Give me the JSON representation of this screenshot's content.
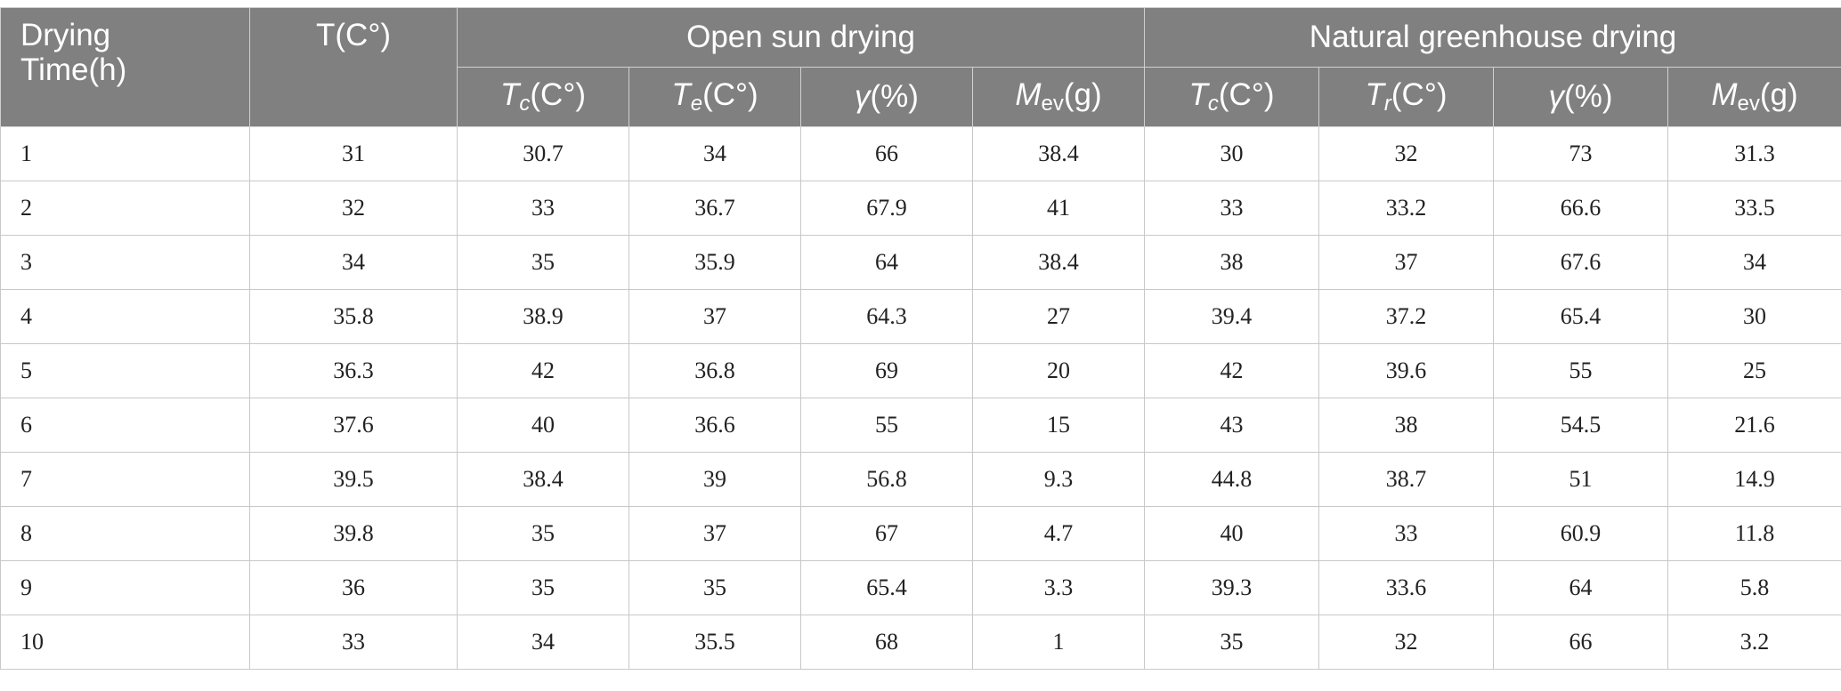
{
  "header": {
    "time_line1": "Drying",
    "time_line2": "Time(h)",
    "t_label": "T(C°)",
    "open_group": "Open sun drying",
    "natural_group": "Natural greenhouse drying",
    "open_cols": [
      {
        "sym": "T",
        "sub": "c",
        "unit": "(C°)"
      },
      {
        "sym": "T",
        "sub": "e",
        "unit": "(C°)"
      },
      {
        "sym": "γ",
        "sub": "",
        "unit": "(%)"
      },
      {
        "sym": "M",
        "sub": "ev",
        "unit": "(g)"
      }
    ],
    "natural_cols": [
      {
        "sym": "T",
        "sub": "c",
        "unit": "(C°)"
      },
      {
        "sym": "T",
        "sub": "r",
        "unit": "(C°)"
      },
      {
        "sym": "γ",
        "sub": "",
        "unit": "(%)"
      },
      {
        "sym": "M",
        "sub": "ev",
        "unit": "(g)"
      }
    ]
  },
  "rows": [
    [
      "1",
      "31",
      "30.7",
      "34",
      "66",
      "38.4",
      "30",
      "32",
      "73",
      "31.3"
    ],
    [
      "2",
      "32",
      "33",
      "36.7",
      "67.9",
      "41",
      "33",
      "33.2",
      "66.6",
      "33.5"
    ],
    [
      "3",
      "34",
      "35",
      "35.9",
      "64",
      "38.4",
      "38",
      "37",
      "67.6",
      "34"
    ],
    [
      "4",
      "35.8",
      "38.9",
      "37",
      "64.3",
      "27",
      "39.4",
      "37.2",
      "65.4",
      "30"
    ],
    [
      "5",
      "36.3",
      "42",
      "36.8",
      "69",
      "20",
      "42",
      "39.6",
      "55",
      "25"
    ],
    [
      "6",
      "37.6",
      "40",
      "36.6",
      "55",
      "15",
      "43",
      "38",
      "54.5",
      "21.6"
    ],
    [
      "7",
      "39.5",
      "38.4",
      "39",
      "56.8",
      "9.3",
      "44.8",
      "38.7",
      "51",
      "14.9"
    ],
    [
      "8",
      "39.8",
      "35",
      "37",
      "67",
      "4.7",
      "40",
      "33",
      "60.9",
      "11.8"
    ],
    [
      "9",
      "36",
      "35",
      "35",
      "65.4",
      "3.3",
      "39.3",
      "33.6",
      "64",
      "5.8"
    ],
    [
      "10",
      "33",
      "34",
      "35.5",
      "68",
      "1",
      "35",
      "32",
      "66",
      "3.2"
    ]
  ]
}
